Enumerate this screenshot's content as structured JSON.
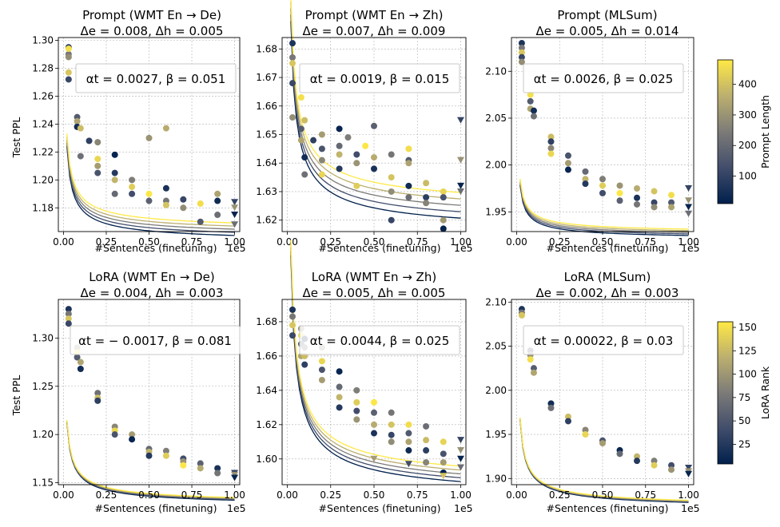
{
  "chart_data": [
    {
      "type": "scatter",
      "title_line1": "Prompt (WMT En → De)",
      "title_line2": "Δe = 0.008, Δh = 0.005",
      "annotation": "αt = 0.0027, β = 0.051",
      "xlabel": "#Sentences (finetuning)",
      "ylabel": "Test PPL",
      "xscale_label": "1e5",
      "xlim": [
        -0.03,
        1.03
      ],
      "ylim": [
        1.163,
        1.302
      ],
      "xticks": [
        "0.00",
        "0.25",
        "0.50",
        "0.75",
        "1.00"
      ],
      "yticks": [
        1.18,
        1.2,
        1.22,
        1.24,
        1.26,
        1.28,
        1.3
      ],
      "grid": true,
      "colorbar": "Prompt Length",
      "fits": {
        "a": 0.0062,
        "c": 1.1585,
        "spread": 0.0045
      },
      "points": [
        [
          0.03,
          1.295
        ],
        [
          0.03,
          1.29
        ],
        [
          0.03,
          1.277
        ],
        [
          0.03,
          1.272
        ],
        [
          0.03,
          1.288
        ],
        [
          0.03,
          1.294
        ],
        [
          0.08,
          1.245
        ],
        [
          0.08,
          1.242
        ],
        [
          0.08,
          1.238
        ],
        [
          0.1,
          1.217
        ],
        [
          0.1,
          1.237
        ],
        [
          0.15,
          1.228
        ],
        [
          0.2,
          1.227
        ],
        [
          0.2,
          1.215
        ],
        [
          0.2,
          1.205
        ],
        [
          0.2,
          1.21
        ],
        [
          0.3,
          1.218
        ],
        [
          0.3,
          1.19
        ],
        [
          0.3,
          1.2
        ],
        [
          0.3,
          1.205
        ],
        [
          0.4,
          1.2
        ],
        [
          0.4,
          1.195
        ],
        [
          0.4,
          1.19
        ],
        [
          0.5,
          1.23
        ],
        [
          0.5,
          1.19
        ],
        [
          0.5,
          1.185
        ],
        [
          0.6,
          1.237
        ],
        [
          0.6,
          1.194
        ],
        [
          0.6,
          1.185
        ],
        [
          0.6,
          1.182
        ],
        [
          0.7,
          1.186
        ],
        [
          0.7,
          1.18
        ],
        [
          0.8,
          1.183
        ],
        [
          0.8,
          1.17
        ],
        [
          0.9,
          1.19
        ],
        [
          0.9,
          1.185
        ],
        [
          0.9,
          1.175
        ]
      ],
      "triangles": [
        [
          1.0,
          1.184
        ],
        [
          1.0,
          1.18
        ],
        [
          1.0,
          1.175
        ],
        [
          1.0,
          1.168
        ]
      ]
    },
    {
      "type": "scatter",
      "title_line1": "Prompt (WMT En → Zh)",
      "title_line2": "Δe = 0.007, Δh = 0.009",
      "annotation": "αt = 0.0019, β = 0.015",
      "xlabel": "#Sentences (finetuning)",
      "ylabel": "",
      "xscale_label": "1e5",
      "xlim": [
        -0.03,
        1.03
      ],
      "ylim": [
        1.616,
        1.684
      ],
      "xticks": [
        "0.00",
        "0.25",
        "0.50",
        "0.75",
        "1.00"
      ],
      "yticks": [
        1.62,
        1.63,
        1.64,
        1.65,
        1.66,
        1.67,
        1.68
      ],
      "grid": true,
      "fits": {
        "a": 0.0067,
        "c": 1.6185,
        "spread": 0.0045
      },
      "points": [
        [
          0.03,
          1.682
        ],
        [
          0.03,
          1.677
        ],
        [
          0.03,
          1.675
        ],
        [
          0.03,
          1.668
        ],
        [
          0.03,
          1.656
        ],
        [
          0.08,
          1.663
        ],
        [
          0.08,
          1.652
        ],
        [
          0.08,
          1.648
        ],
        [
          0.1,
          1.642
        ],
        [
          0.1,
          1.636
        ],
        [
          0.1,
          1.655
        ],
        [
          0.15,
          1.648
        ],
        [
          0.2,
          1.641
        ],
        [
          0.2,
          1.636
        ],
        [
          0.2,
          1.645
        ],
        [
          0.2,
          1.65
        ],
        [
          0.3,
          1.652
        ],
        [
          0.3,
          1.646
        ],
        [
          0.3,
          1.643
        ],
        [
          0.3,
          1.638
        ],
        [
          0.35,
          1.649
        ],
        [
          0.4,
          1.632
        ],
        [
          0.4,
          1.643
        ],
        [
          0.4,
          1.64
        ],
        [
          0.45,
          1.646
        ],
        [
          0.5,
          1.653
        ],
        [
          0.5,
          1.642
        ],
        [
          0.5,
          1.638
        ],
        [
          0.6,
          1.643
        ],
        [
          0.6,
          1.635
        ],
        [
          0.6,
          1.62
        ],
        [
          0.6,
          1.63
        ],
        [
          0.7,
          1.645
        ],
        [
          0.7,
          1.641
        ],
        [
          0.7,
          1.64
        ],
        [
          0.7,
          1.632
        ],
        [
          0.7,
          1.628
        ],
        [
          0.8,
          1.633
        ],
        [
          0.8,
          1.628
        ],
        [
          0.8,
          1.626
        ],
        [
          0.9,
          1.63
        ],
        [
          0.9,
          1.628
        ],
        [
          0.9,
          1.62
        ],
        [
          0.9,
          1.617
        ]
      ],
      "triangles": [
        [
          1.0,
          1.655
        ],
        [
          1.0,
          1.641
        ],
        [
          1.0,
          1.632
        ],
        [
          1.0,
          1.63
        ]
      ]
    },
    {
      "type": "scatter",
      "title_line1": "Prompt (MLSum)",
      "title_line2": "Δe = 0.005, Δh = 0.014",
      "annotation": "αt = 0.0026, β = 0.025",
      "xlabel": "#Sentences (finetuning)",
      "ylabel": "",
      "xscale_label": "1e5",
      "xlim": [
        -0.03,
        1.03
      ],
      "ylim": [
        1.929,
        2.136
      ],
      "xticks": [
        "0.00",
        "0.25",
        "0.50",
        "0.75",
        "1.00"
      ],
      "yticks": [
        1.95,
        2.0,
        2.05,
        2.1
      ],
      "grid": true,
      "fits": {
        "a": 0.0052,
        "c": 1.923,
        "spread": 0.0034
      },
      "points": [
        [
          0.03,
          2.13
        ],
        [
          0.03,
          2.125
        ],
        [
          0.03,
          2.12
        ],
        [
          0.03,
          2.115
        ],
        [
          0.03,
          2.11
        ],
        [
          0.08,
          2.075
        ],
        [
          0.08,
          2.068
        ],
        [
          0.08,
          2.06
        ],
        [
          0.1,
          2.058
        ],
        [
          0.1,
          2.052
        ],
        [
          0.2,
          2.03
        ],
        [
          0.2,
          2.025
        ],
        [
          0.2,
          2.018
        ],
        [
          0.2,
          2.012
        ],
        [
          0.3,
          2.01
        ],
        [
          0.3,
          2.002
        ],
        [
          0.3,
          1.995
        ],
        [
          0.4,
          1.993
        ],
        [
          0.4,
          1.985
        ],
        [
          0.4,
          1.98
        ],
        [
          0.5,
          1.985
        ],
        [
          0.5,
          1.978
        ],
        [
          0.5,
          1.97
        ],
        [
          0.6,
          1.978
        ],
        [
          0.6,
          1.97
        ],
        [
          0.6,
          1.962
        ],
        [
          0.7,
          1.975
        ],
        [
          0.7,
          1.965
        ],
        [
          0.7,
          1.958
        ],
        [
          0.8,
          1.972
        ],
        [
          0.8,
          1.96
        ],
        [
          0.8,
          1.955
        ],
        [
          0.9,
          1.968
        ],
        [
          0.9,
          1.96
        ],
        [
          0.9,
          1.955
        ]
      ],
      "triangles": [
        [
          1.0,
          1.975
        ],
        [
          1.0,
          1.962
        ],
        [
          1.0,
          1.955
        ],
        [
          1.0,
          1.948
        ]
      ]
    },
    {
      "type": "scatter",
      "title_line1": "LoRA (WMT En → De)",
      "title_line2": "Δe = 0.004, Δh = 0.003",
      "annotation": "αt = − 0.0017, β = 0.081",
      "xlabel": "#Sentences (finetuning)",
      "ylabel": "Test PPL",
      "xscale_label": "1e5",
      "xlim": [
        -0.03,
        1.03
      ],
      "ylim": [
        1.148,
        1.34
      ],
      "xticks": [
        "0.00",
        "0.25",
        "0.50",
        "0.75",
        "1.00"
      ],
      "yticks": [
        1.15,
        1.2,
        1.25,
        1.3
      ],
      "grid": true,
      "colorbar": "LoRA Rank",
      "fits": {
        "a": 0.0078,
        "c": 1.1255,
        "spread": 0.0014
      },
      "points": [
        [
          0.03,
          1.33
        ],
        [
          0.03,
          1.325
        ],
        [
          0.03,
          1.32
        ],
        [
          0.03,
          1.315
        ],
        [
          0.08,
          1.29
        ],
        [
          0.08,
          1.285
        ],
        [
          0.08,
          1.28
        ],
        [
          0.1,
          1.275
        ],
        [
          0.1,
          1.268
        ],
        [
          0.2,
          1.243
        ],
        [
          0.2,
          1.238
        ],
        [
          0.2,
          1.235
        ],
        [
          0.3,
          1.208
        ],
        [
          0.3,
          1.204
        ],
        [
          0.3,
          1.2
        ],
        [
          0.4,
          1.2
        ],
        [
          0.4,
          1.195
        ],
        [
          0.5,
          1.185
        ],
        [
          0.5,
          1.182
        ],
        [
          0.5,
          1.178
        ],
        [
          0.6,
          1.183
        ],
        [
          0.6,
          1.178
        ],
        [
          0.7,
          1.175
        ],
        [
          0.7,
          1.172
        ],
        [
          0.7,
          1.168
        ],
        [
          0.8,
          1.17
        ],
        [
          0.8,
          1.165
        ],
        [
          0.9,
          1.165
        ],
        [
          0.9,
          1.16
        ]
      ],
      "triangles": [
        [
          1.0,
          1.16
        ],
        [
          1.0,
          1.158
        ],
        [
          1.0,
          1.155
        ]
      ]
    },
    {
      "type": "scatter",
      "title_line1": "LoRA (WMT En → Zh)",
      "title_line2": "Δe = 0.005, Δh = 0.005",
      "annotation": "αt = 0.0044, β = 0.025",
      "xlabel": "#Sentences (finetuning)",
      "ylabel": "",
      "xscale_label": "1e5",
      "xlim": [
        -0.03,
        1.03
      ],
      "ylim": [
        1.585,
        1.693
      ],
      "xticks": [
        "0.00",
        "0.25",
        "0.50",
        "0.75",
        "1.00"
      ],
      "yticks": [
        1.6,
        1.62,
        1.64,
        1.66,
        1.68
      ],
      "grid": true,
      "fits": {
        "a": 0.0128,
        "c": 1.5785,
        "spread": 0.0045
      },
      "points": [
        [
          0.03,
          1.687
        ],
        [
          0.03,
          1.683
        ],
        [
          0.03,
          1.678
        ],
        [
          0.03,
          1.672
        ],
        [
          0.08,
          1.676
        ],
        [
          0.08,
          1.672
        ],
        [
          0.08,
          1.667
        ],
        [
          0.08,
          1.66
        ],
        [
          0.1,
          1.67
        ],
        [
          0.1,
          1.665
        ],
        [
          0.1,
          1.66
        ],
        [
          0.1,
          1.655
        ],
        [
          0.2,
          1.665
        ],
        [
          0.2,
          1.657
        ],
        [
          0.2,
          1.652
        ],
        [
          0.2,
          1.646
        ],
        [
          0.3,
          1.651
        ],
        [
          0.3,
          1.642
        ],
        [
          0.3,
          1.636
        ],
        [
          0.3,
          1.63
        ],
        [
          0.4,
          1.64
        ],
        [
          0.4,
          1.633
        ],
        [
          0.4,
          1.628
        ],
        [
          0.4,
          1.623
        ],
        [
          0.5,
          1.633
        ],
        [
          0.5,
          1.627
        ],
        [
          0.5,
          1.62
        ],
        [
          0.5,
          1.615
        ],
        [
          0.6,
          1.627
        ],
        [
          0.6,
          1.62
        ],
        [
          0.6,
          1.614
        ],
        [
          0.6,
          1.61
        ],
        [
          0.7,
          1.62
        ],
        [
          0.7,
          1.615
        ],
        [
          0.7,
          1.61
        ],
        [
          0.7,
          1.605
        ],
        [
          0.8,
          1.619
        ],
        [
          0.8,
          1.611
        ],
        [
          0.8,
          1.605
        ],
        [
          0.8,
          1.598
        ],
        [
          0.9,
          1.61
        ],
        [
          0.9,
          1.603
        ],
        [
          0.9,
          1.598
        ],
        [
          0.9,
          1.592
        ]
      ],
      "triangles": [
        [
          1.0,
          1.611
        ],
        [
          1.0,
          1.605
        ],
        [
          1.0,
          1.6
        ],
        [
          1.0,
          1.595
        ],
        [
          0.9,
          1.59
        ],
        [
          0.7,
          1.597
        ],
        [
          0.5,
          1.6
        ]
      ]
    },
    {
      "type": "scatter",
      "title_line1": "LoRA (MLSum)",
      "title_line2": "Δe = 0.002, Δh = 0.003",
      "annotation": "αt = 0.00022, β = 0.03",
      "xlabel": "#Sentences (finetuning)",
      "ylabel": "",
      "xscale_label": "1e5",
      "xlim": [
        -0.03,
        1.03
      ],
      "ylim": [
        1.893,
        2.103
      ],
      "xticks": [
        "0.00",
        "0.25",
        "0.50",
        "0.75",
        "1.00"
      ],
      "yticks": [
        1.9,
        1.95,
        2.0,
        2.05,
        2.1
      ],
      "grid": true,
      "fits": {
        "a": 0.0091,
        "c": 1.865,
        "spread": 0.0012
      },
      "points": [
        [
          0.03,
          2.092
        ],
        [
          0.03,
          2.088
        ],
        [
          0.03,
          2.085
        ],
        [
          0.08,
          2.045
        ],
        [
          0.08,
          2.04
        ],
        [
          0.08,
          2.035
        ],
        [
          0.1,
          2.025
        ],
        [
          0.1,
          2.02
        ],
        [
          0.2,
          1.985
        ],
        [
          0.2,
          1.98
        ],
        [
          0.3,
          1.97
        ],
        [
          0.3,
          1.965
        ],
        [
          0.4,
          1.955
        ],
        [
          0.4,
          1.95
        ],
        [
          0.5,
          1.943
        ],
        [
          0.5,
          1.94
        ],
        [
          0.6,
          1.932
        ],
        [
          0.6,
          1.928
        ],
        [
          0.7,
          1.925
        ],
        [
          0.7,
          1.92
        ],
        [
          0.8,
          1.92
        ],
        [
          0.8,
          1.915
        ],
        [
          0.9,
          1.915
        ],
        [
          0.9,
          1.91
        ]
      ],
      "triangles": [
        [
          1.0,
          1.912
        ],
        [
          1.0,
          1.908
        ],
        [
          1.0,
          1.905
        ]
      ]
    }
  ],
  "colorbars": [
    {
      "label": "Prompt Length",
      "range": [
        10,
        480
      ],
      "ticks": [
        100,
        200,
        300,
        400
      ]
    },
    {
      "label": "LoRA Rank",
      "range": [
        4,
        156
      ],
      "ticks": [
        25,
        50,
        75,
        100,
        125,
        150
      ]
    }
  ],
  "colors": {
    "colormap_low": "#00204c",
    "colormap_mid": "#7c7b78",
    "colormap_high": "#ffe945",
    "grid": "#b0b0b0"
  }
}
